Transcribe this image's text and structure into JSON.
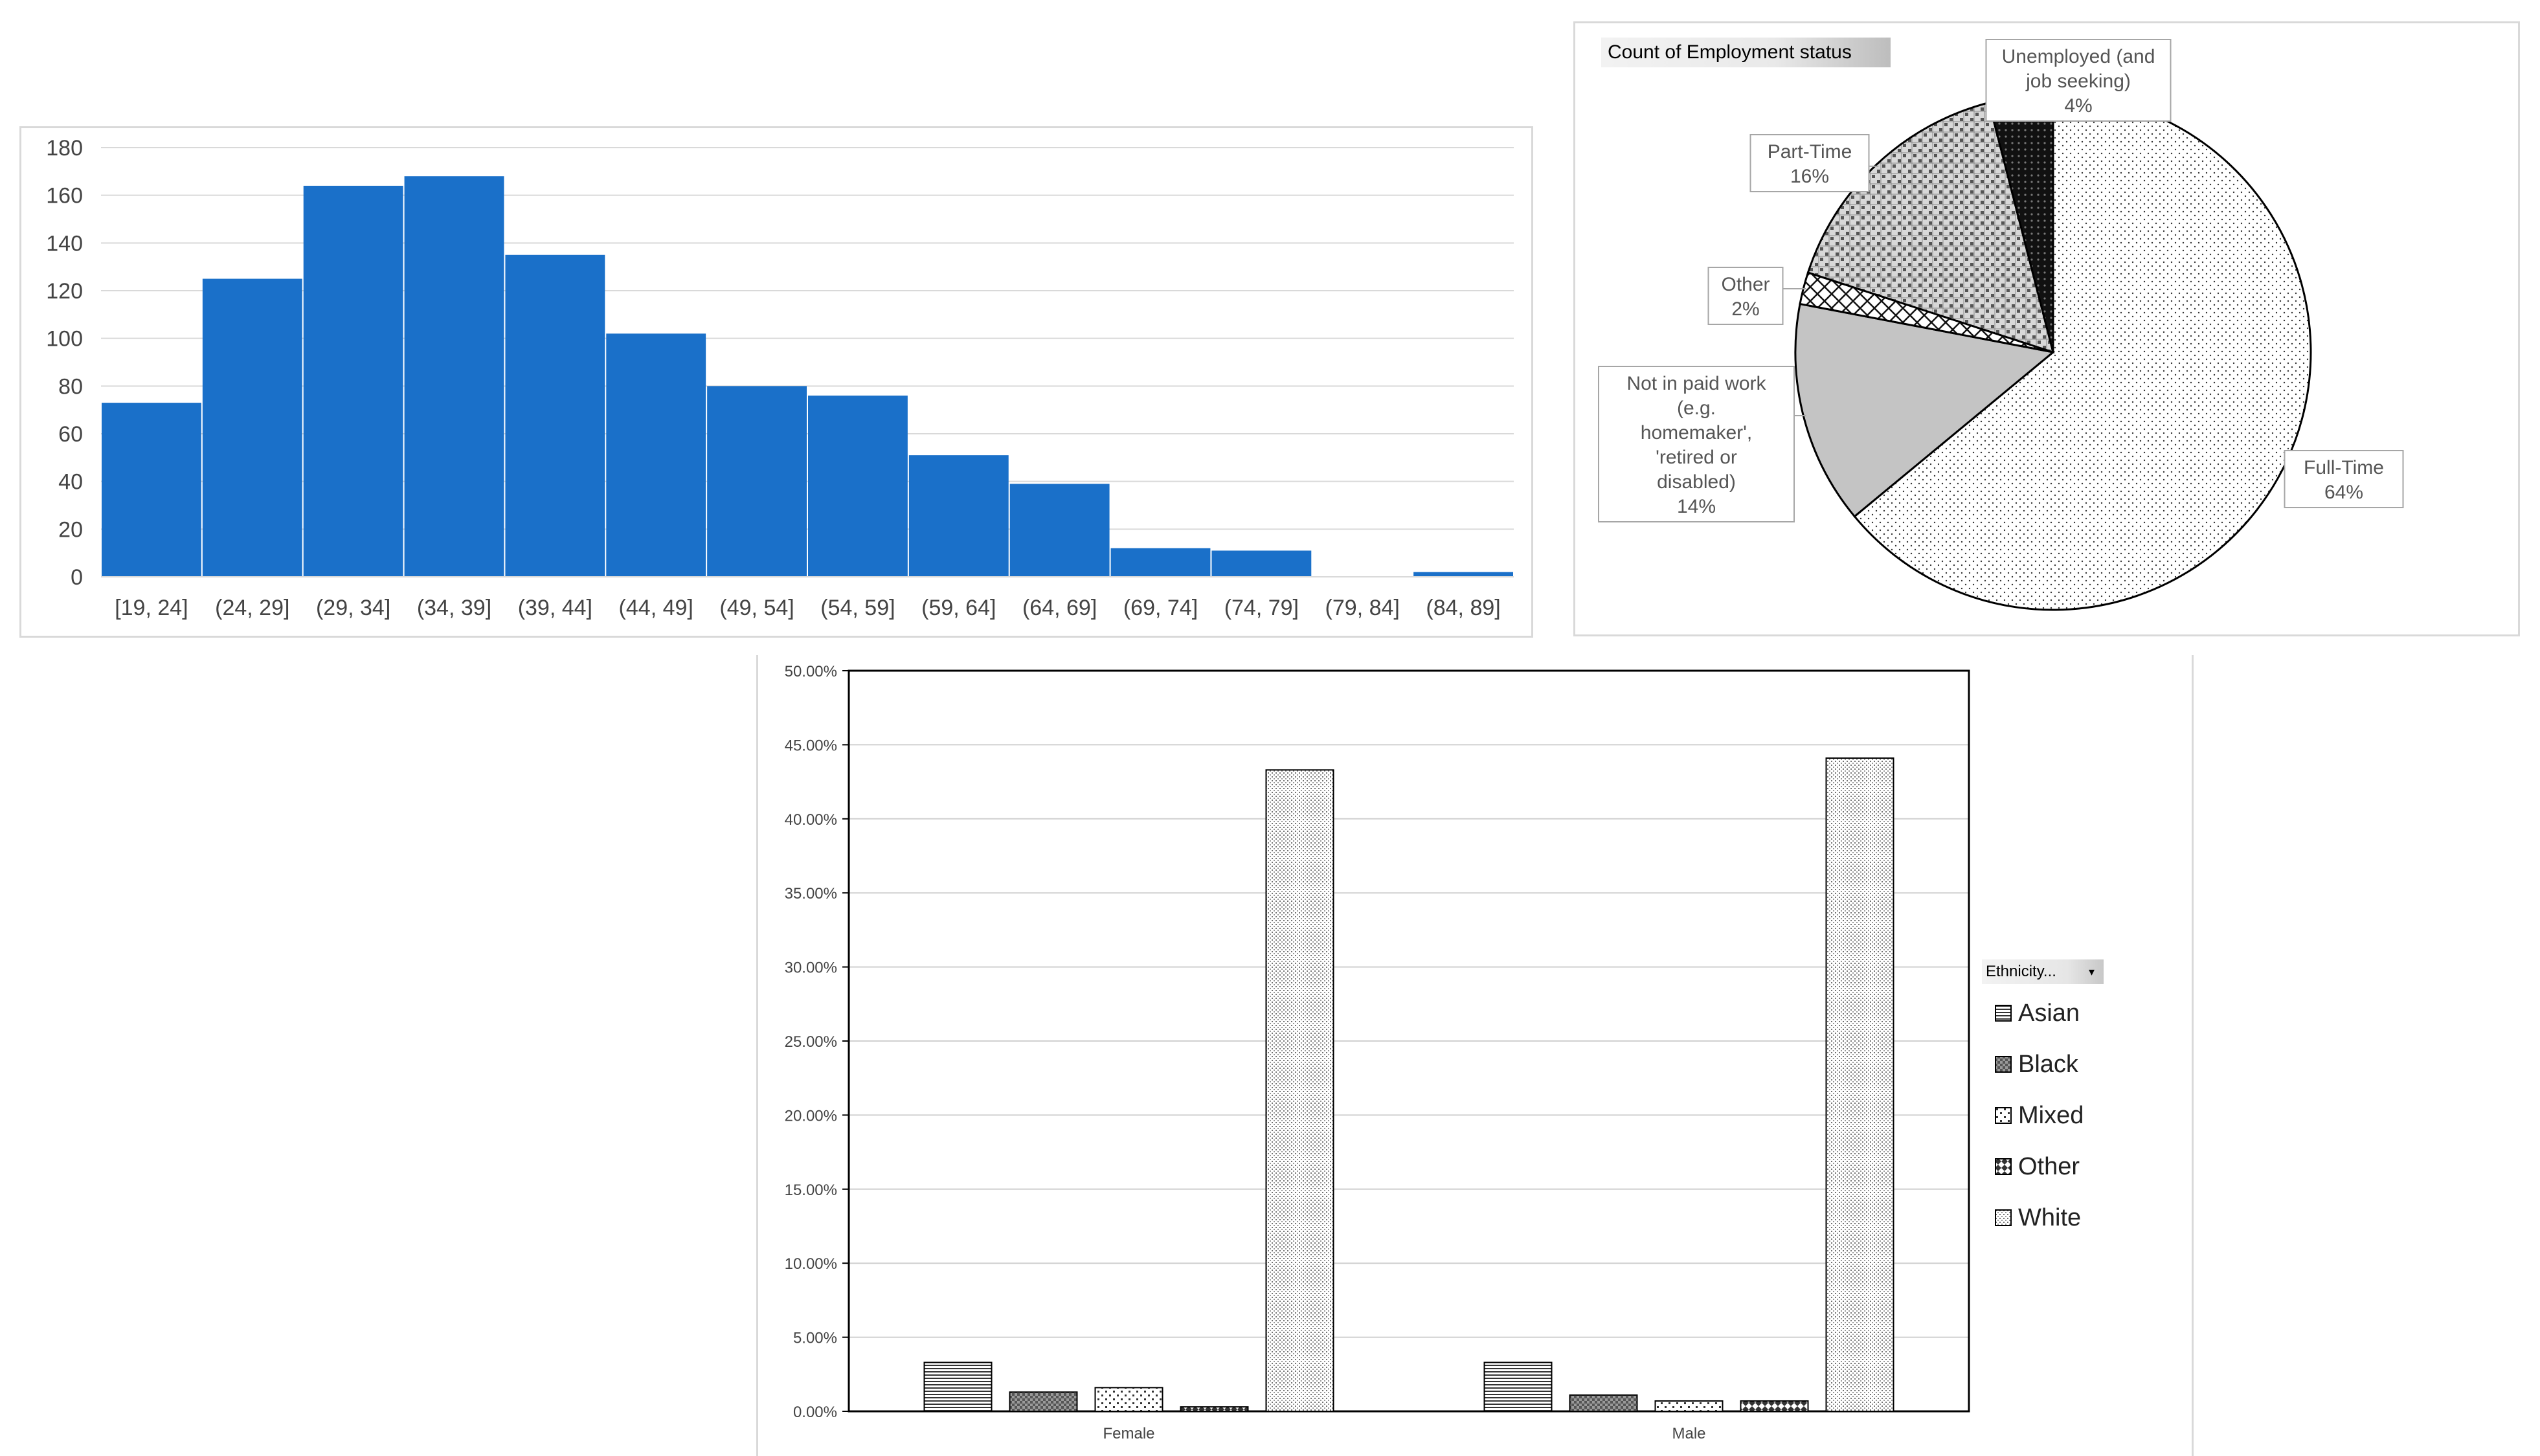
{
  "charts": {
    "histogram": {
      "type": "bar",
      "categories": [
        "[19, 24]",
        "(24, 29]",
        "(29, 34]",
        "(34, 39]",
        "(39, 44]",
        "(44, 49]",
        "(49, 54]",
        "(54, 59]",
        "(59, 64]",
        "(64, 69]",
        "(69, 74]",
        "(74, 79]",
        "(79, 84]",
        "(84, 89]"
      ],
      "values": [
        73,
        125,
        164,
        168,
        135,
        102,
        80,
        76,
        51,
        39,
        12,
        11,
        0,
        2
      ],
      "ylim": [
        0,
        180
      ],
      "yticks": [
        "0",
        "20",
        "40",
        "60",
        "80",
        "100",
        "120",
        "140",
        "160",
        "180"
      ],
      "color": "#1a70c9",
      "grid": true
    },
    "pie": {
      "type": "pie",
      "header": "Count of Employment status",
      "slices": [
        {
          "label_lines": [
            "Full-Time",
            "64%"
          ],
          "value": 64,
          "pattern": "dots-sparse"
        },
        {
          "label_lines": [
            "Not in paid work",
            "(e.g.",
            "homemaker',",
            "'retired or",
            "disabled)",
            "14%"
          ],
          "value": 14,
          "pattern": "gray"
        },
        {
          "label_lines": [
            "Other",
            "2%"
          ],
          "value": 2,
          "pattern": "diagcross"
        },
        {
          "label_lines": [
            "Part-Time",
            "16%"
          ],
          "value": 16,
          "pattern": "weave"
        },
        {
          "label_lines": [
            "Unemployed (and",
            "job seeking)",
            "4%"
          ],
          "value": 4,
          "pattern": "dark"
        }
      ]
    },
    "ethnicity": {
      "type": "bar",
      "categories": [
        "Female",
        "Male"
      ],
      "series": [
        {
          "name": "Asian",
          "values": [
            3.3,
            3.3
          ],
          "pattern": "hlines"
        },
        {
          "name": "Black",
          "values": [
            1.3,
            1.1
          ],
          "pattern": "darkcheck"
        },
        {
          "name": "Mixed",
          "values": [
            1.6,
            0.7
          ],
          "pattern": "sparse"
        },
        {
          "name": "Other",
          "values": [
            0.3,
            0.7
          ],
          "pattern": "diamond"
        },
        {
          "name": "White",
          "values": [
            43.3,
            44.1
          ],
          "pattern": "fine"
        }
      ],
      "ylim": [
        0,
        50
      ],
      "yticks": [
        "0.00%",
        "5.00%",
        "10.00%",
        "15.00%",
        "20.00%",
        "25.00%",
        "30.00%",
        "35.00%",
        "40.00%",
        "45.00%",
        "50.00%"
      ],
      "legend_header": "Ethnicity...",
      "legend_placement": "right",
      "grid": true
    }
  }
}
